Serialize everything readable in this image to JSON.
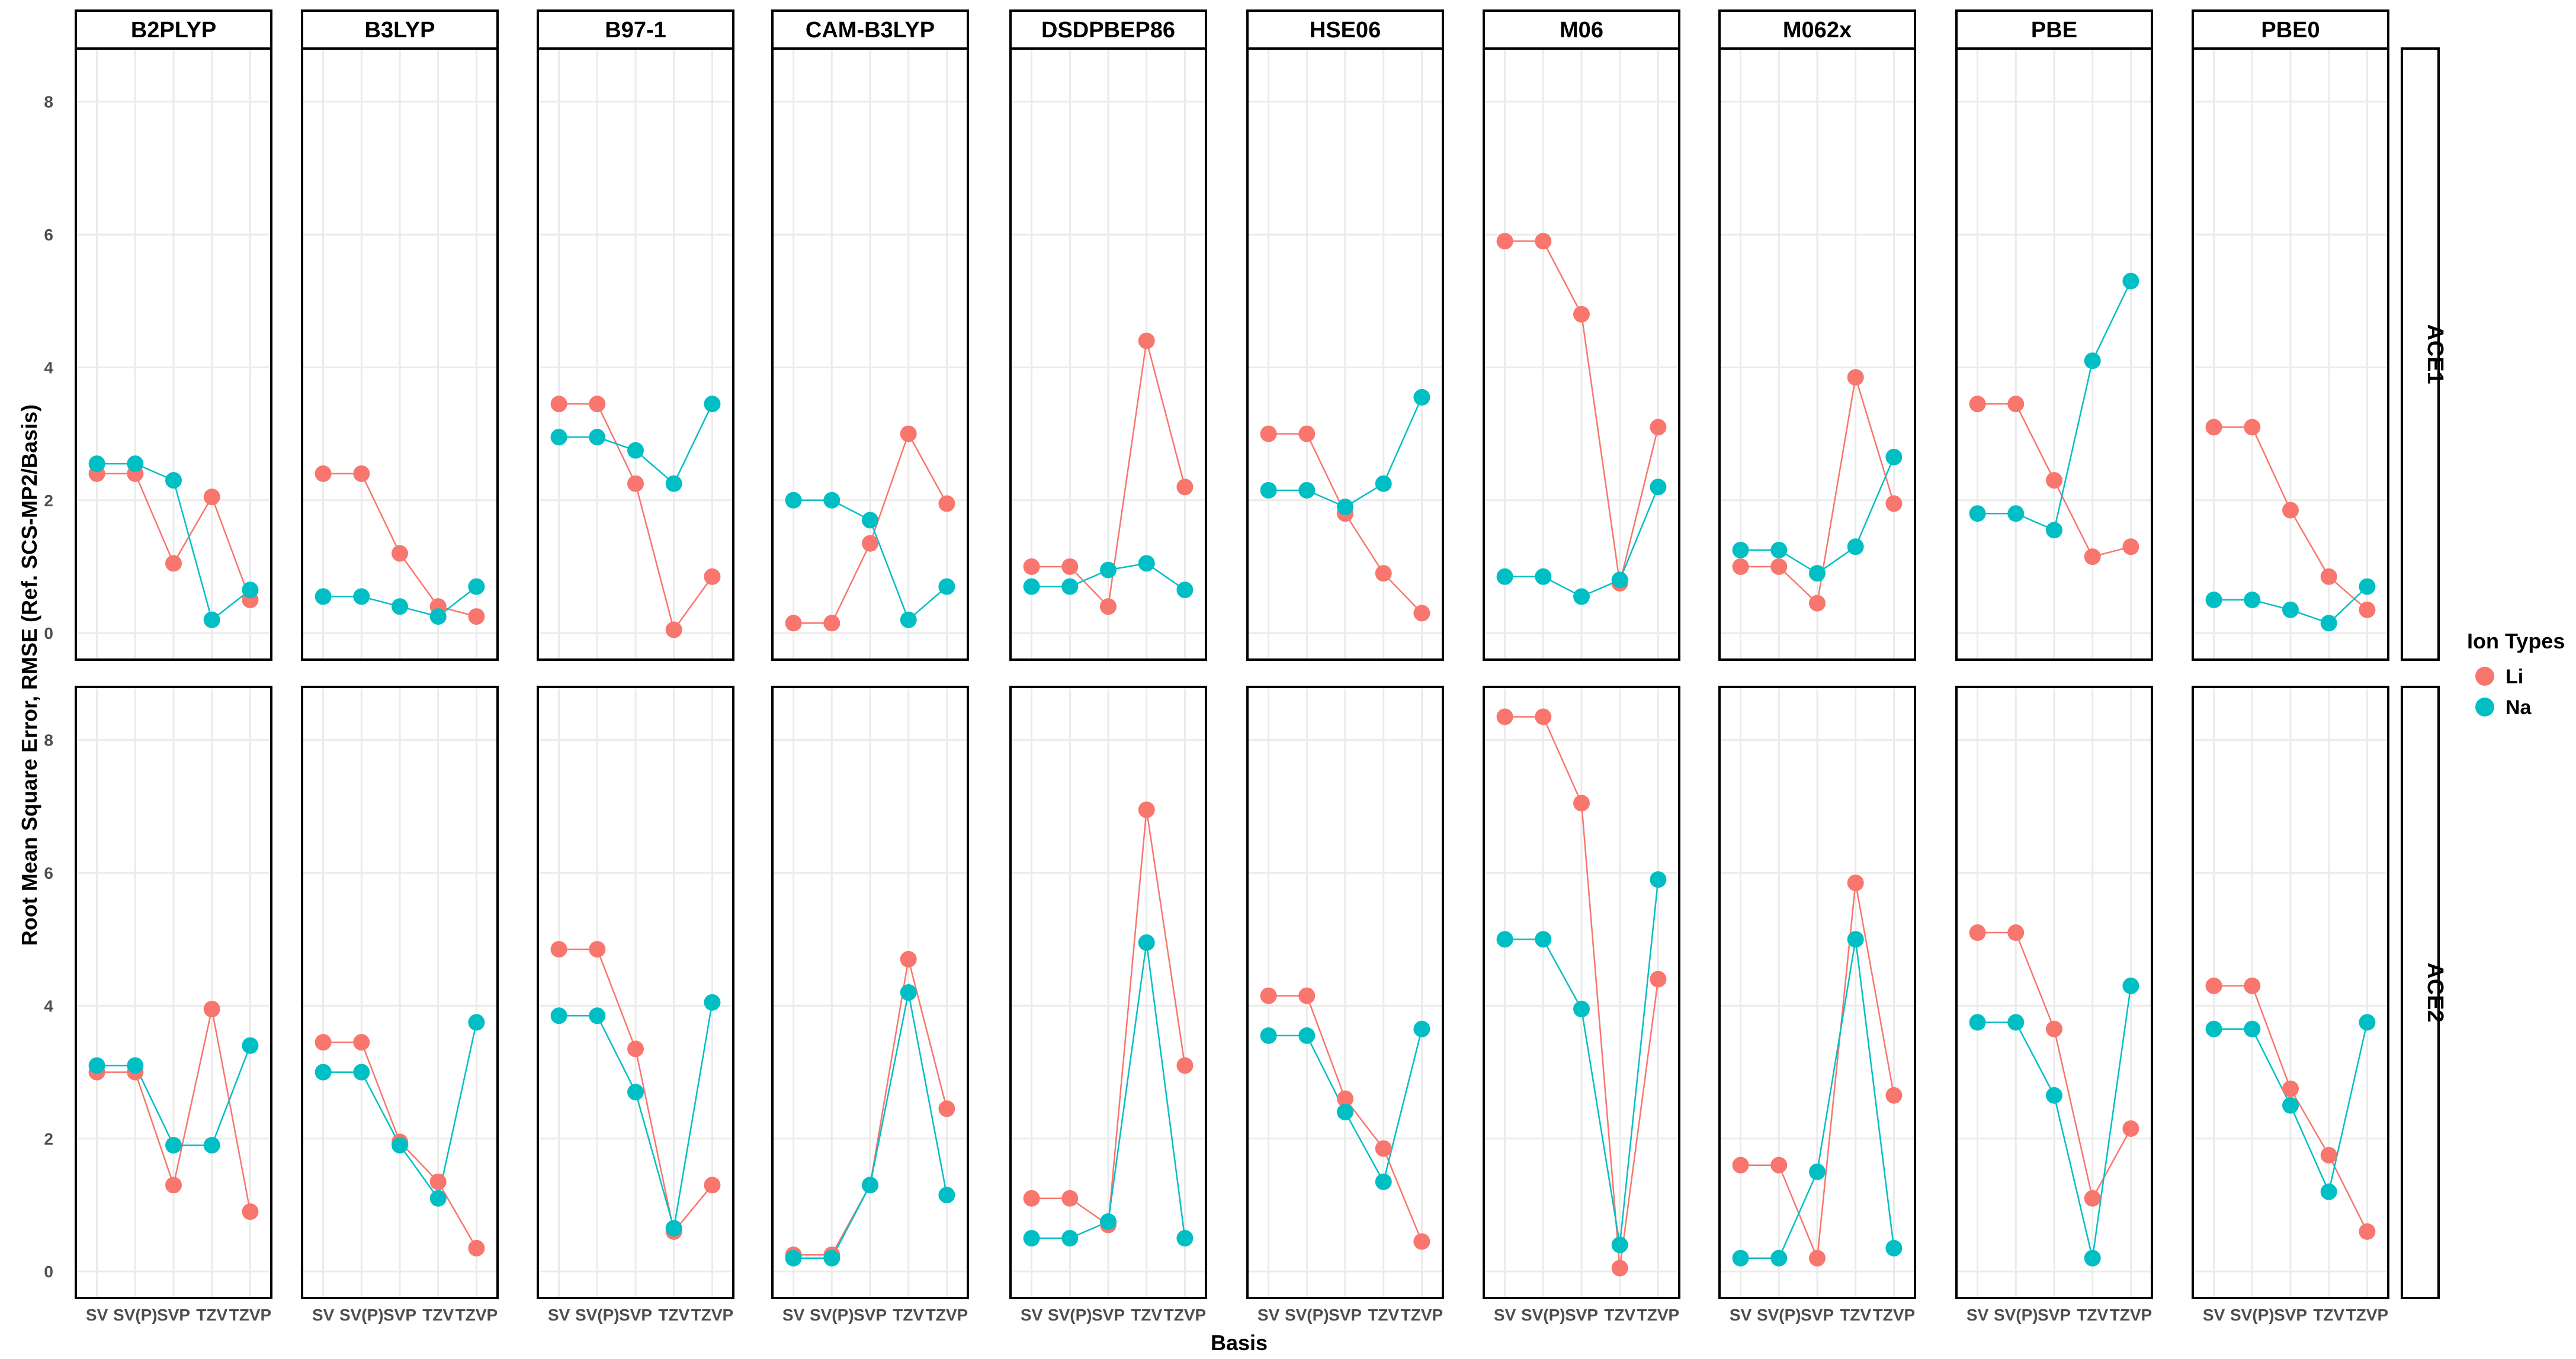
{
  "chart_data": {
    "type": "line",
    "xlabel": "Basis",
    "ylabel": "Root Mean Square Error, RMSE (Ref. SCS-MP2/Basis)",
    "categories": [
      "SV",
      "SV(P)",
      "SVP",
      "TZV",
      "TZVP"
    ],
    "ylim": [
      -0.4,
      8.8
    ],
    "yticks": [
      0,
      2,
      4,
      6,
      8
    ],
    "functionals": [
      "B2PLYP",
      "B3LYP",
      "B97-1",
      "CAM-B3LYP",
      "DSDPBEP86",
      "HSE06",
      "M06",
      "M062x",
      "PBE",
      "PBE0"
    ],
    "rows": [
      "ACE1",
      "ACE2"
    ],
    "legend": {
      "title": "Ion Types",
      "entries": [
        {
          "name": "Li",
          "color": "#F8766D"
        },
        {
          "name": "Na",
          "color": "#00BFC4"
        }
      ]
    },
    "series": {
      "ACE1": {
        "B2PLYP": {
          "Li": [
            2.4,
            2.4,
            1.05,
            2.05,
            0.5
          ],
          "Na": [
            2.55,
            2.55,
            2.3,
            0.2,
            0.65
          ]
        },
        "B3LYP": {
          "Li": [
            2.4,
            2.4,
            1.2,
            0.4,
            0.25
          ],
          "Na": [
            0.55,
            0.55,
            0.4,
            0.25,
            0.7
          ]
        },
        "B97-1": {
          "Li": [
            3.45,
            3.45,
            2.25,
            0.05,
            0.85
          ],
          "Na": [
            2.95,
            2.95,
            2.75,
            2.25,
            3.45
          ]
        },
        "CAM-B3LYP": {
          "Li": [
            0.15,
            0.15,
            1.35,
            3.0,
            1.95
          ],
          "Na": [
            2.0,
            2.0,
            1.7,
            0.2,
            0.7
          ]
        },
        "DSDPBEP86": {
          "Li": [
            1.0,
            1.0,
            0.4,
            4.4,
            2.2
          ],
          "Na": [
            0.7,
            0.7,
            0.95,
            1.05,
            0.65
          ]
        },
        "HSE06": {
          "Li": [
            3.0,
            3.0,
            1.8,
            0.9,
            0.3
          ],
          "Na": [
            2.15,
            2.15,
            1.9,
            2.25,
            3.55
          ]
        },
        "M06": {
          "Li": [
            5.9,
            5.9,
            4.8,
            0.75,
            3.1
          ],
          "Na": [
            0.85,
            0.85,
            0.55,
            0.8,
            2.2
          ]
        },
        "M062x": {
          "Li": [
            1.0,
            1.0,
            0.45,
            3.85,
            1.95
          ],
          "Na": [
            1.25,
            1.25,
            0.9,
            1.3,
            2.65
          ]
        },
        "PBE": {
          "Li": [
            3.45,
            3.45,
            2.3,
            1.15,
            1.3
          ],
          "Na": [
            1.8,
            1.8,
            1.55,
            4.1,
            5.3
          ]
        },
        "PBE0": {
          "Li": [
            3.1,
            3.1,
            1.85,
            0.85,
            0.35
          ],
          "Na": [
            0.5,
            0.5,
            0.35,
            0.15,
            0.7
          ]
        }
      },
      "ACE2": {
        "B2PLYP": {
          "Li": [
            3.0,
            3.0,
            1.3,
            3.95,
            0.9
          ],
          "Na": [
            3.1,
            3.1,
            1.9,
            1.9,
            3.4
          ]
        },
        "B3LYP": {
          "Li": [
            3.45,
            3.45,
            1.95,
            1.35,
            0.35
          ],
          "Na": [
            3.0,
            3.0,
            1.9,
            1.1,
            3.75
          ]
        },
        "B97-1": {
          "Li": [
            4.85,
            4.85,
            3.35,
            0.6,
            1.3
          ],
          "Na": [
            3.85,
            3.85,
            2.7,
            0.65,
            4.05
          ]
        },
        "CAM-B3LYP": {
          "Li": [
            0.25,
            0.25,
            1.3,
            4.7,
            2.45
          ],
          "Na": [
            0.2,
            0.2,
            1.3,
            4.2,
            1.15
          ]
        },
        "DSDPBEP86": {
          "Li": [
            1.1,
            1.1,
            0.7,
            6.95,
            3.1
          ],
          "Na": [
            0.5,
            0.5,
            0.75,
            4.95,
            0.5
          ]
        },
        "HSE06": {
          "Li": [
            4.15,
            4.15,
            2.6,
            1.85,
            0.45
          ],
          "Na": [
            3.55,
            3.55,
            2.4,
            1.35,
            3.65
          ]
        },
        "M06": {
          "Li": [
            8.35,
            8.35,
            7.05,
            0.05,
            4.4
          ],
          "Na": [
            5.0,
            5.0,
            3.95,
            0.4,
            5.9
          ]
        },
        "M062x": {
          "Li": [
            1.6,
            1.6,
            0.2,
            5.85,
            2.65
          ],
          "Na": [
            0.2,
            0.2,
            1.5,
            5.0,
            0.35
          ]
        },
        "PBE": {
          "Li": [
            5.1,
            5.1,
            3.65,
            1.1,
            2.15
          ],
          "Na": [
            3.75,
            3.75,
            2.65,
            0.2,
            4.3
          ]
        },
        "PBE0": {
          "Li": [
            4.3,
            4.3,
            2.75,
            1.75,
            0.6
          ],
          "Na": [
            3.65,
            3.65,
            2.5,
            1.2,
            3.75
          ]
        }
      }
    }
  }
}
